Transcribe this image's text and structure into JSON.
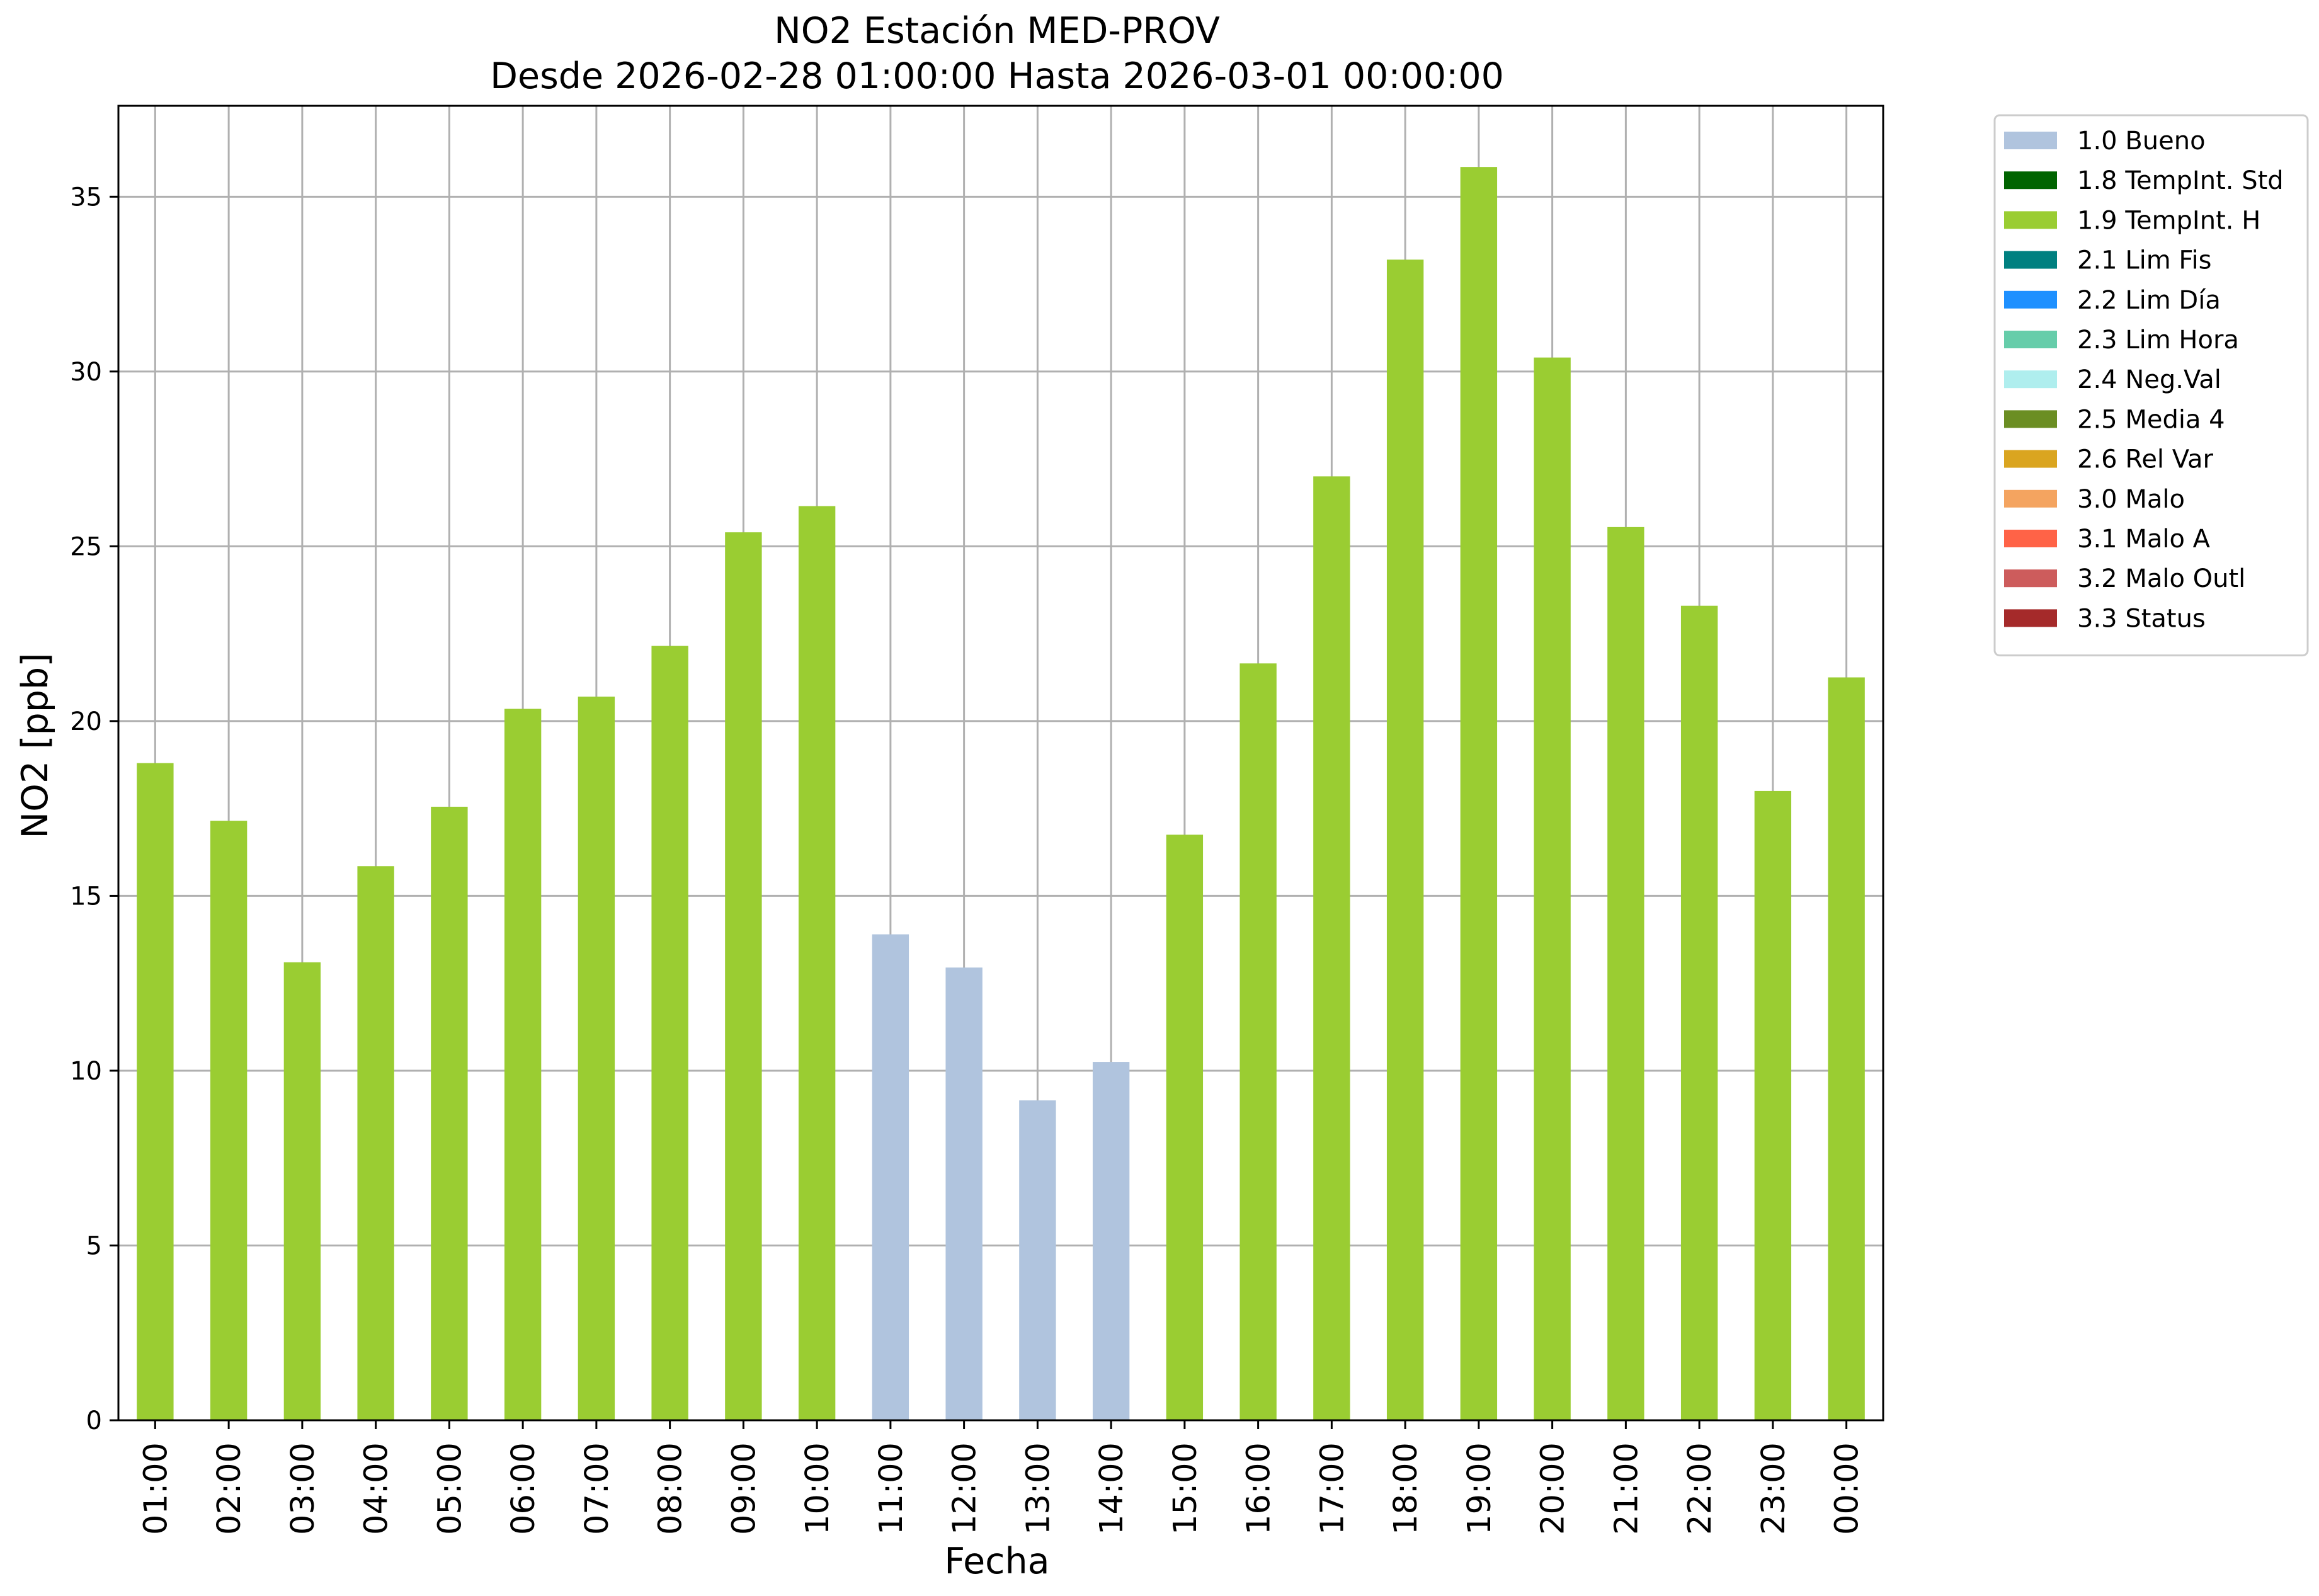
{
  "chart_data": {
    "type": "bar",
    "title": "NO2 Estación MED-PROV",
    "subtitle": "Desde 2026-02-28 01:00:00 Hasta 2026-03-01 00:00:00",
    "xlabel": "Fecha",
    "ylabel": "NO2 [ppb]",
    "ylim": [
      0,
      37.6
    ],
    "yticks": [
      "0",
      "5",
      "10",
      "15",
      "20",
      "25",
      "30",
      "35"
    ],
    "grid": true,
    "legend_position": "outside-top-right",
    "categories": [
      "01:00",
      "02:00",
      "03:00",
      "04:00",
      "05:00",
      "06:00",
      "07:00",
      "08:00",
      "09:00",
      "10:00",
      "11:00",
      "12:00",
      "13:00",
      "14:00",
      "15:00",
      "16:00",
      "17:00",
      "18:00",
      "19:00",
      "20:00",
      "21:00",
      "22:00",
      "23:00",
      "00:00"
    ],
    "values": [
      18.8,
      17.15,
      13.1,
      15.85,
      17.55,
      20.35,
      20.7,
      22.15,
      25.4,
      26.15,
      13.9,
      12.95,
      9.15,
      10.25,
      16.75,
      21.65,
      27.0,
      33.2,
      35.85,
      30.4,
      25.55,
      23.3,
      18.0,
      21.25
    ],
    "flags": [
      "1.9 TempInt. H",
      "1.9 TempInt. H",
      "1.9 TempInt. H",
      "1.9 TempInt. H",
      "1.9 TempInt. H",
      "1.9 TempInt. H",
      "1.9 TempInt. H",
      "1.9 TempInt. H",
      "1.9 TempInt. H",
      "1.9 TempInt. H",
      "1.0 Bueno",
      "1.0 Bueno",
      "1.0 Bueno",
      "1.0 Bueno",
      "1.9 TempInt. H",
      "1.9 TempInt. H",
      "1.9 TempInt. H",
      "1.9 TempInt. H",
      "1.9 TempInt. H",
      "1.9 TempInt. H",
      "1.9 TempInt. H",
      "1.9 TempInt. H",
      "1.9 TempInt. H",
      "1.9 TempInt. H"
    ],
    "legend": [
      {
        "label": "1.0 Bueno",
        "color": "#b0c4de"
      },
      {
        "label": "1.8 TempInt. Std",
        "color": "#006400"
      },
      {
        "label": "1.9 TempInt. H",
        "color": "#9acd32"
      },
      {
        "label": "2.1 Lim Fis",
        "color": "#008080"
      },
      {
        "label": "2.2 Lim Día",
        "color": "#1e90ff"
      },
      {
        "label": "2.3 Lim Hora",
        "color": "#66cdaa"
      },
      {
        "label": "2.4 Neg.Val",
        "color": "#afeeee"
      },
      {
        "label": "2.5 Media 4",
        "color": "#6b8e23"
      },
      {
        "label": "2.6 Rel Var",
        "color": "#daa520"
      },
      {
        "label": "3.0 Malo",
        "color": "#f4a460"
      },
      {
        "label": "3.1 Malo A",
        "color": "#ff6347"
      },
      {
        "label": "3.2 Malo Outl",
        "color": "#cd5c5c"
      },
      {
        "label": "3.3 Status",
        "color": "#a52a2a"
      }
    ]
  }
}
